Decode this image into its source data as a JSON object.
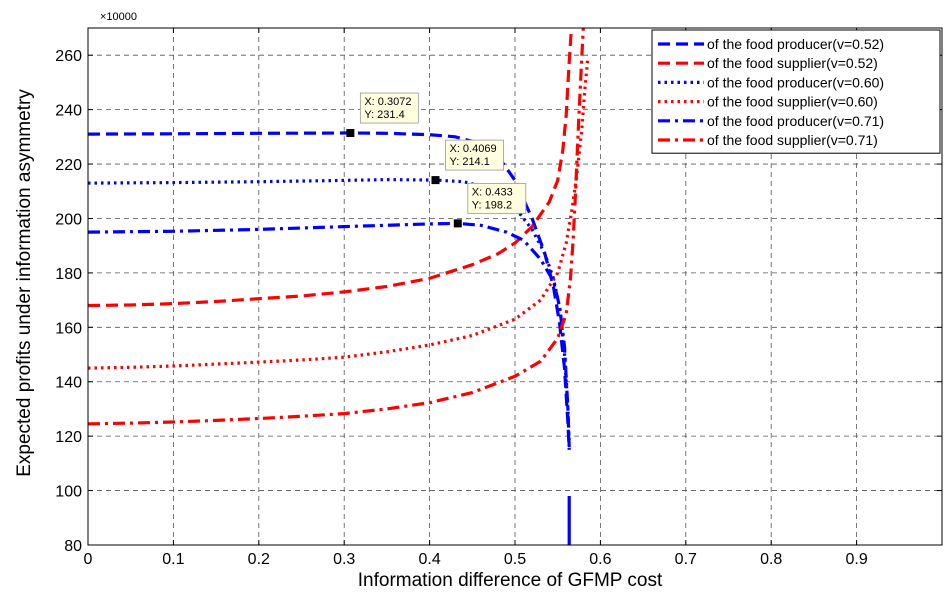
{
  "chart_data": {
    "type": "line",
    "xlabel": "Information  difference of GFMP cost",
    "ylabel": "Expected profits under information asymmetry",
    "y_multiplier_label": "×10000",
    "xlim": [
      0,
      1
    ],
    "ylim": [
      80,
      270
    ],
    "x_ticks": [
      0,
      0.1,
      0.2,
      0.3,
      0.4,
      0.5,
      0.6,
      0.7,
      0.8,
      0.9
    ],
    "y_ticks": [
      80,
      100,
      120,
      140,
      160,
      180,
      200,
      220,
      240,
      260
    ],
    "grid": true,
    "legend_position": "top-right",
    "series": [
      {
        "name": "of the food producer(v=0.52)",
        "color": "#0000ff",
        "dash": "dashed",
        "points": [
          [
            0,
            231
          ],
          [
            0.1,
            231.1
          ],
          [
            0.2,
            231.3
          ],
          [
            0.3072,
            231.4
          ],
          [
            0.35,
            231.3
          ],
          [
            0.4,
            230.8
          ],
          [
            0.43,
            230
          ],
          [
            0.46,
            227.5
          ],
          [
            0.48,
            223
          ],
          [
            0.5,
            214
          ],
          [
            0.52,
            200
          ],
          [
            0.535,
            187
          ],
          [
            0.545,
            175
          ],
          [
            0.552,
            162
          ],
          [
            0.558,
            145
          ],
          [
            0.562,
            125
          ],
          [
            0.5635,
            115
          ]
        ]
      },
      {
        "name": "of the food supplier(v=0.52)",
        "color": "#ff0000",
        "dash": "dashed",
        "points": [
          [
            0,
            168
          ],
          [
            0.05,
            168.2
          ],
          [
            0.1,
            168.7
          ],
          [
            0.15,
            169.5
          ],
          [
            0.2,
            170.5
          ],
          [
            0.25,
            171.5
          ],
          [
            0.3,
            173
          ],
          [
            0.35,
            175
          ],
          [
            0.4,
            178
          ],
          [
            0.45,
            183
          ],
          [
            0.48,
            187
          ],
          [
            0.5,
            191
          ],
          [
            0.52,
            197
          ],
          [
            0.54,
            206
          ],
          [
            0.55,
            214
          ],
          [
            0.556,
            225
          ],
          [
            0.56,
            238
          ],
          [
            0.563,
            255
          ],
          [
            0.566,
            270
          ]
        ]
      },
      {
        "name": "of the food producer(v=0.60)",
        "color": "#0000ff",
        "dash": "dotted",
        "points": [
          [
            0,
            213
          ],
          [
            0.1,
            213.2
          ],
          [
            0.2,
            213.5
          ],
          [
            0.3,
            214
          ],
          [
            0.35,
            214.3
          ],
          [
            0.4069,
            214.1
          ],
          [
            0.44,
            213.5
          ],
          [
            0.47,
            211
          ],
          [
            0.5,
            204
          ],
          [
            0.52,
            196
          ],
          [
            0.535,
            187
          ],
          [
            0.545,
            178
          ],
          [
            0.553,
            166
          ],
          [
            0.558,
            150
          ],
          [
            0.562,
            130
          ],
          [
            0.5635,
            118
          ]
        ]
      },
      {
        "name": "of the food supplier(v=0.60)",
        "color": "#ff0000",
        "dash": "dotted",
        "points": [
          [
            0,
            145
          ],
          [
            0.05,
            145.3
          ],
          [
            0.1,
            145.8
          ],
          [
            0.15,
            146.5
          ],
          [
            0.2,
            147.2
          ],
          [
            0.25,
            148
          ],
          [
            0.3,
            149
          ],
          [
            0.35,
            151
          ],
          [
            0.4,
            153.5
          ],
          [
            0.45,
            157
          ],
          [
            0.5,
            163
          ],
          [
            0.53,
            170
          ],
          [
            0.55,
            180
          ],
          [
            0.56,
            191
          ],
          [
            0.566,
            202
          ],
          [
            0.572,
            215
          ],
          [
            0.578,
            232
          ],
          [
            0.582,
            248
          ],
          [
            0.585,
            258
          ]
        ]
      },
      {
        "name": "of the food producer(v=0.71)",
        "color": "#0000ff",
        "dash": "dashdot",
        "points": [
          [
            0,
            195
          ],
          [
            0.1,
            195.3
          ],
          [
            0.2,
            196
          ],
          [
            0.3,
            197
          ],
          [
            0.35,
            197.5
          ],
          [
            0.4,
            198
          ],
          [
            0.433,
            198.2
          ],
          [
            0.46,
            197.5
          ],
          [
            0.49,
            195
          ],
          [
            0.51,
            192
          ],
          [
            0.53,
            185
          ],
          [
            0.545,
            177
          ],
          [
            0.552,
            168
          ],
          [
            0.558,
            153
          ],
          [
            0.562,
            130
          ],
          [
            0.5635,
            116
          ]
        ]
      },
      {
        "name": " of the food supplier(v=0.71)",
        "color": "#ff0000",
        "dash": "dashdot",
        "points": [
          [
            0,
            124.5
          ],
          [
            0.05,
            124.8
          ],
          [
            0.1,
            125.2
          ],
          [
            0.15,
            125.8
          ],
          [
            0.2,
            126.5
          ],
          [
            0.25,
            127.3
          ],
          [
            0.3,
            128.3
          ],
          [
            0.35,
            130
          ],
          [
            0.4,
            132.3
          ],
          [
            0.45,
            136
          ],
          [
            0.5,
            142
          ],
          [
            0.53,
            147.5
          ],
          [
            0.55,
            156
          ],
          [
            0.56,
            165
          ],
          [
            0.565,
            178
          ],
          [
            0.568,
            192
          ],
          [
            0.571,
            210
          ],
          [
            0.574,
            232
          ],
          [
            0.577,
            252
          ],
          [
            0.58,
            270
          ]
        ]
      }
    ],
    "extra_segments": [
      {
        "color": "#0000ff",
        "points": [
          [
            0.5635,
            98
          ],
          [
            0.5635,
            80
          ]
        ]
      }
    ],
    "data_tips": [
      {
        "x": 0.3072,
        "y": 231.4,
        "line1": "X: 0.3072",
        "line2": "Y: 231.4"
      },
      {
        "x": 0.4069,
        "y": 214.1,
        "line1": "X: 0.4069",
        "line2": "Y: 214.1"
      },
      {
        "x": 0.433,
        "y": 198.2,
        "line1": "X: 0.433",
        "line2": "Y: 198.2"
      }
    ]
  }
}
